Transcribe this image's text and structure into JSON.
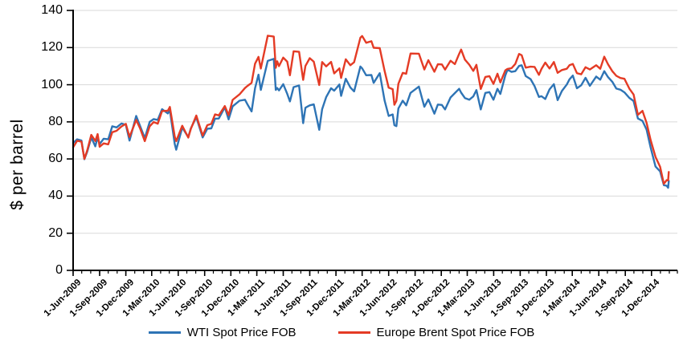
{
  "chart_data": {
    "type": "line",
    "title": "",
    "xlabel": "",
    "ylabel": "$ per barrel",
    "ylim": [
      0,
      140
    ],
    "yticks": [
      0,
      20,
      40,
      60,
      80,
      100,
      120,
      140
    ],
    "grid": true,
    "gridline_color": "#D9D9D9",
    "axis_color": "#000000",
    "legend_position": "bottom",
    "x_range": {
      "start": "2009-06-01",
      "end": "2015-03-01"
    },
    "minor_x_tick_interval": "month",
    "x_ticks": [
      {
        "label": "1-Jun-2009",
        "date": "2009-06-01"
      },
      {
        "label": "1-Sep-2009",
        "date": "2009-09-01"
      },
      {
        "label": "1-Dec-2009",
        "date": "2009-12-01"
      },
      {
        "label": "1-Mar-2010",
        "date": "2010-03-01"
      },
      {
        "label": "1-Jun-2010",
        "date": "2010-06-01"
      },
      {
        "label": "1-Sep-2010",
        "date": "2010-09-01"
      },
      {
        "label": "1-Dec-2010",
        "date": "2010-12-01"
      },
      {
        "label": "1-Mar-2011",
        "date": "2011-03-01"
      },
      {
        "label": "1-Jun-2011",
        "date": "2011-06-01"
      },
      {
        "label": "1-Sep-2011",
        "date": "2011-09-01"
      },
      {
        "label": "1-Dec-2011",
        "date": "2011-12-01"
      },
      {
        "label": "1-Mar-2012",
        "date": "2012-03-01"
      },
      {
        "label": "1-Jun-2012",
        "date": "2012-06-01"
      },
      {
        "label": "1-Sep-2012",
        "date": "2012-09-01"
      },
      {
        "label": "1-Dec-2012",
        "date": "2012-12-01"
      },
      {
        "label": "1-Mar-2013",
        "date": "2013-03-01"
      },
      {
        "label": "1-Jun-2013",
        "date": "2013-06-01"
      },
      {
        "label": "1-Sep-2013",
        "date": "2013-09-01"
      },
      {
        "label": "1-Dec-2013",
        "date": "2013-12-01"
      },
      {
        "label": "1-Mar-2014",
        "date": "2014-03-01"
      },
      {
        "label": "1-Jun-2014",
        "date": "2014-06-01"
      },
      {
        "label": "1-Sep-2014",
        "date": "2014-09-01"
      },
      {
        "label": "1-Dec-2014",
        "date": "2014-12-01"
      }
    ],
    "series": [
      {
        "name": "WTI Spot Price FOB",
        "color": "#2E74B5"
      },
      {
        "name": "Europe Brent Spot Price FOB",
        "color": "#E43B25"
      }
    ],
    "points_format": [
      "date",
      "WTI Spot Price FOB",
      "Europe Brent Spot Price FOB"
    ],
    "points": [
      [
        "2009-06-01",
        68.6,
        66.3
      ],
      [
        "2009-06-15",
        70.6,
        69.8
      ],
      [
        "2009-06-30",
        69.9,
        69.3
      ],
      [
        "2009-07-10",
        59.9,
        60.0
      ],
      [
        "2009-07-20",
        64.0,
        64.7
      ],
      [
        "2009-08-03",
        71.6,
        73.0
      ],
      [
        "2009-08-17",
        66.8,
        69.7
      ],
      [
        "2009-08-25",
        71.7,
        73.4
      ],
      [
        "2009-09-01",
        68.0,
        66.6
      ],
      [
        "2009-09-15",
        70.9,
        68.4
      ],
      [
        "2009-10-01",
        70.6,
        67.9
      ],
      [
        "2009-10-15",
        77.6,
        74.4
      ],
      [
        "2009-10-30",
        77.0,
        75.2
      ],
      [
        "2009-11-16",
        79.1,
        77.5
      ],
      [
        "2009-12-01",
        78.4,
        78.9
      ],
      [
        "2009-12-14",
        69.9,
        71.9
      ],
      [
        "2010-01-06",
        83.2,
        81.0
      ],
      [
        "2010-01-20",
        77.6,
        76.3
      ],
      [
        "2010-02-05",
        71.2,
        69.6
      ],
      [
        "2010-02-22",
        80.0,
        77.6
      ],
      [
        "2010-03-08",
        81.5,
        79.9
      ],
      [
        "2010-03-22",
        81.0,
        79.0
      ],
      [
        "2010-04-06",
        86.8,
        85.8
      ],
      [
        "2010-04-26",
        84.5,
        86.0
      ],
      [
        "2010-05-03",
        86.2,
        88.0
      ],
      [
        "2010-05-20",
        68.0,
        72.0
      ],
      [
        "2010-05-25",
        65.0,
        69.6
      ],
      [
        "2010-06-15",
        76.9,
        77.9
      ],
      [
        "2010-07-06",
        71.8,
        71.5
      ],
      [
        "2010-07-15",
        76.5,
        76.2
      ],
      [
        "2010-08-03",
        82.5,
        83.4
      ],
      [
        "2010-08-25",
        71.6,
        72.6
      ],
      [
        "2010-09-10",
        76.3,
        78.2
      ],
      [
        "2010-09-24",
        76.5,
        78.9
      ],
      [
        "2010-10-07",
        81.7,
        84.0
      ],
      [
        "2010-10-20",
        81.8,
        83.5
      ],
      [
        "2010-11-10",
        87.8,
        88.5
      ],
      [
        "2010-11-23",
        81.3,
        83.6
      ],
      [
        "2010-12-07",
        88.3,
        91.8
      ],
      [
        "2010-12-31",
        91.4,
        94.8
      ],
      [
        "2011-01-19",
        91.9,
        98.2
      ],
      [
        "2011-01-28",
        89.3,
        99.4
      ],
      [
        "2011-02-11",
        85.6,
        101.0
      ],
      [
        "2011-02-23",
        98.1,
        111.3
      ],
      [
        "2011-03-07",
        105.4,
        115.0
      ],
      [
        "2011-03-15",
        97.2,
        108.7
      ],
      [
        "2011-04-08",
        112.8,
        126.4
      ],
      [
        "2011-04-29",
        113.9,
        125.9
      ],
      [
        "2011-05-06",
        97.2,
        109.1
      ],
      [
        "2011-05-11",
        98.2,
        112.6
      ],
      [
        "2011-05-17",
        96.9,
        110.0
      ],
      [
        "2011-06-01",
        100.3,
        114.6
      ],
      [
        "2011-06-15",
        95.0,
        112.4
      ],
      [
        "2011-06-24",
        91.0,
        105.1
      ],
      [
        "2011-07-07",
        98.7,
        118.0
      ],
      [
        "2011-07-26",
        99.6,
        117.7
      ],
      [
        "2011-08-09",
        79.3,
        102.6
      ],
      [
        "2011-08-17",
        87.6,
        110.1
      ],
      [
        "2011-09-01",
        88.9,
        114.3
      ],
      [
        "2011-09-15",
        89.4,
        112.4
      ],
      [
        "2011-10-04",
        75.7,
        99.8
      ],
      [
        "2011-10-14",
        86.8,
        112.2
      ],
      [
        "2011-10-28",
        93.3,
        109.9
      ],
      [
        "2011-11-14",
        98.1,
        112.3
      ],
      [
        "2011-11-25",
        96.8,
        106.1
      ],
      [
        "2011-12-13",
        100.1,
        108.8
      ],
      [
        "2011-12-19",
        94.0,
        103.6
      ],
      [
        "2012-01-04",
        103.2,
        113.7
      ],
      [
        "2012-01-20",
        98.5,
        110.5
      ],
      [
        "2012-02-02",
        96.4,
        112.1
      ],
      [
        "2012-02-24",
        109.8,
        125.3
      ],
      [
        "2012-03-01",
        108.8,
        126.2
      ],
      [
        "2012-03-15",
        105.1,
        122.6
      ],
      [
        "2012-04-02",
        105.2,
        123.4
      ],
      [
        "2012-04-10",
        101.0,
        119.9
      ],
      [
        "2012-05-01",
        106.2,
        119.7
      ],
      [
        "2012-05-18",
        91.5,
        107.5
      ],
      [
        "2012-06-01",
        83.2,
        98.4
      ],
      [
        "2012-06-15",
        84.0,
        97.6
      ],
      [
        "2012-06-21",
        78.2,
        89.2
      ],
      [
        "2012-06-28",
        77.7,
        91.3
      ],
      [
        "2012-07-05",
        87.2,
        100.5
      ],
      [
        "2012-07-20",
        91.4,
        106.4
      ],
      [
        "2012-08-01",
        88.9,
        105.9
      ],
      [
        "2012-08-16",
        95.6,
        116.8
      ],
      [
        "2012-09-14",
        99.0,
        116.7
      ],
      [
        "2012-10-03",
        88.1,
        108.2
      ],
      [
        "2012-10-17",
        92.1,
        113.2
      ],
      [
        "2012-11-07",
        84.4,
        107.0
      ],
      [
        "2012-11-19",
        89.3,
        111.0
      ],
      [
        "2012-12-03",
        89.1,
        110.9
      ],
      [
        "2012-12-14",
        86.7,
        108.1
      ],
      [
        "2013-01-02",
        93.1,
        112.9
      ],
      [
        "2013-01-17",
        95.5,
        111.1
      ],
      [
        "2013-02-01",
        97.8,
        116.6
      ],
      [
        "2013-02-08",
        95.7,
        118.9
      ],
      [
        "2013-02-21",
        92.8,
        113.5
      ],
      [
        "2013-03-08",
        91.9,
        110.8
      ],
      [
        "2013-03-22",
        93.7,
        107.4
      ],
      [
        "2013-04-02",
        97.1,
        110.7
      ],
      [
        "2013-04-17",
        86.7,
        97.7
      ],
      [
        "2013-05-03",
        95.6,
        104.2
      ],
      [
        "2013-05-17",
        96.0,
        104.6
      ],
      [
        "2013-05-31",
        91.9,
        100.4
      ],
      [
        "2013-06-14",
        97.8,
        105.9
      ],
      [
        "2013-06-24",
        95.0,
        101.2
      ],
      [
        "2013-07-11",
        104.9,
        107.7
      ],
      [
        "2013-07-19",
        108.1,
        108.5
      ],
      [
        "2013-08-02",
        106.9,
        108.9
      ],
      [
        "2013-08-15",
        107.3,
        111.2
      ],
      [
        "2013-08-28",
        110.1,
        116.6
      ],
      [
        "2013-09-06",
        110.5,
        115.9
      ],
      [
        "2013-09-20",
        104.7,
        109.2
      ],
      [
        "2013-10-07",
        103.0,
        109.7
      ],
      [
        "2013-10-21",
        99.2,
        109.6
      ],
      [
        "2013-11-05",
        93.4,
        105.3
      ],
      [
        "2013-11-14",
        93.8,
        108.5
      ],
      [
        "2013-11-27",
        92.3,
        111.9
      ],
      [
        "2013-12-12",
        97.5,
        108.7
      ],
      [
        "2013-12-27",
        100.3,
        112.2
      ],
      [
        "2014-01-09",
        91.7,
        106.4
      ],
      [
        "2014-01-24",
        96.6,
        107.9
      ],
      [
        "2014-02-10",
        100.1,
        108.6
      ],
      [
        "2014-02-19",
        102.9,
        110.5
      ],
      [
        "2014-03-03",
        104.9,
        111.2
      ],
      [
        "2014-03-17",
        98.1,
        106.2
      ],
      [
        "2014-04-01",
        99.7,
        105.6
      ],
      [
        "2014-04-16",
        103.7,
        109.4
      ],
      [
        "2014-05-01",
        99.4,
        108.2
      ],
      [
        "2014-05-23",
        104.4,
        110.5
      ],
      [
        "2014-06-06",
        102.7,
        108.6
      ],
      [
        "2014-06-20",
        107.3,
        115.1
      ],
      [
        "2014-07-03",
        104.1,
        111.0
      ],
      [
        "2014-07-18",
        101.6,
        107.3
      ],
      [
        "2014-08-01",
        97.9,
        104.8
      ],
      [
        "2014-08-15",
        97.3,
        103.6
      ],
      [
        "2014-08-29",
        95.9,
        103.2
      ],
      [
        "2014-09-15",
        92.9,
        97.9
      ],
      [
        "2014-09-30",
        91.2,
        94.7
      ],
      [
        "2014-10-15",
        81.8,
        83.8
      ],
      [
        "2014-10-31",
        80.5,
        85.9
      ],
      [
        "2014-11-14",
        75.8,
        79.4
      ],
      [
        "2014-11-28",
        66.2,
        70.2
      ],
      [
        "2014-12-15",
        55.9,
        61.1
      ],
      [
        "2014-12-31",
        53.3,
        55.8
      ],
      [
        "2015-01-13",
        45.9,
        46.6
      ],
      [
        "2015-01-23",
        45.6,
        48.6
      ],
      [
        "2015-01-28",
        44.5,
        48.5
      ],
      [
        "2015-01-30",
        48.2,
        53.0
      ]
    ]
  }
}
